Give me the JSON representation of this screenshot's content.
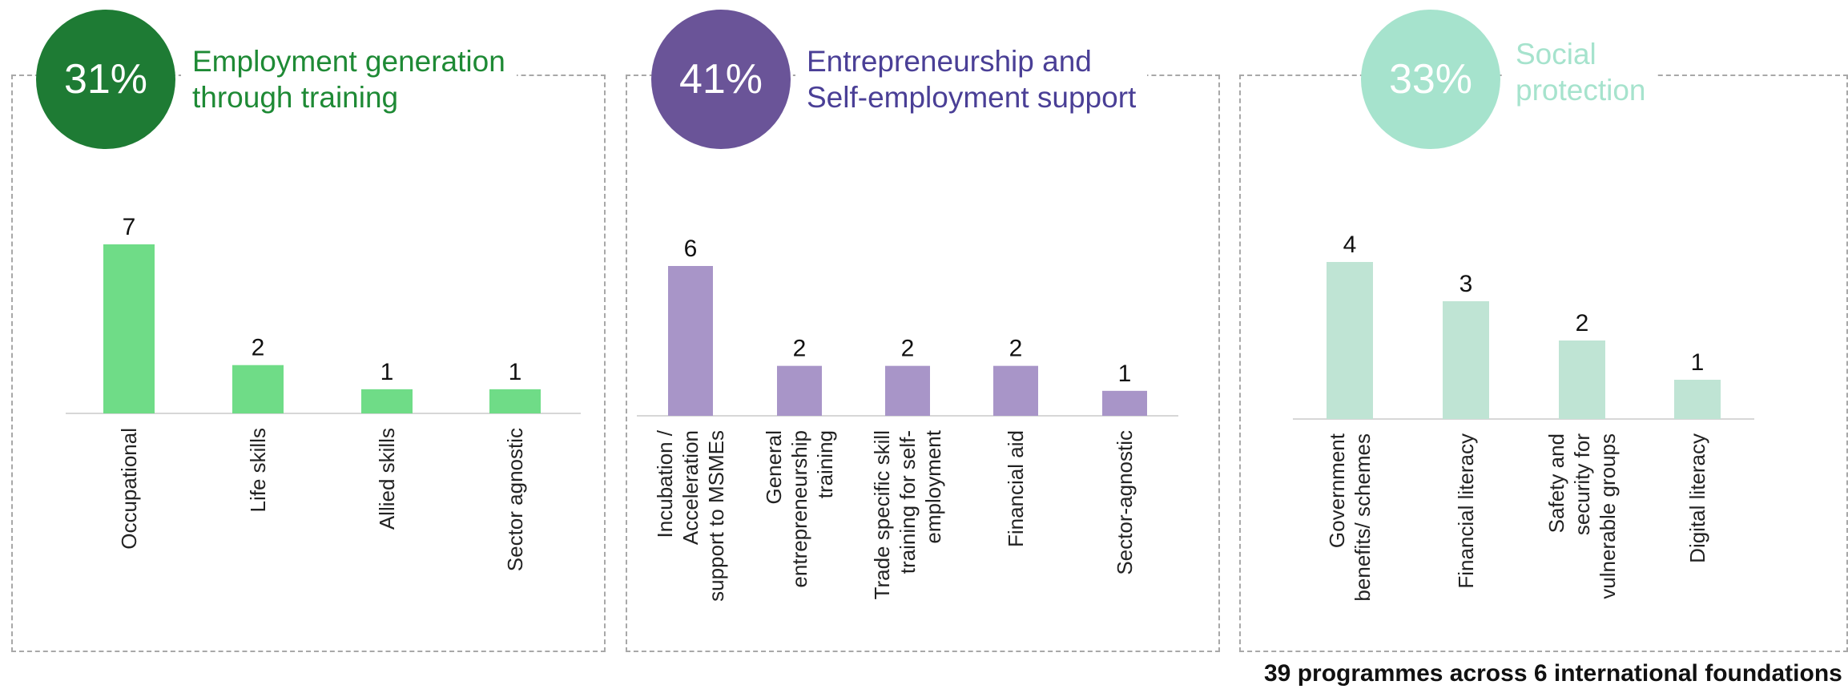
{
  "colors": {
    "employment_dark": "#1e7b34",
    "employment_bar": "#6fdc87",
    "employment_text": "#1e8a35",
    "entrepreneurship_dark": "#6a5498",
    "entrepreneurship_bar": "#a895c8",
    "entrepreneurship_text": "#4a3f96",
    "social_dark": "#a6e3cd",
    "social_bar": "#bfe4d4",
    "social_text": "#a6e3cd",
    "axis": "#d7d7d7"
  },
  "footer_note": "39 programmes across 6 international foundations",
  "chart_data": [
    {
      "type": "bar",
      "percent_label": "31%",
      "title_lines": [
        "Employment generation",
        "through training"
      ],
      "categories": [
        [
          "Occupational"
        ],
        [
          "Life skills"
        ],
        [
          "Allied skills"
        ],
        [
          "Sector agnostic"
        ]
      ],
      "values": [
        7,
        2,
        1,
        1
      ],
      "ylim": [
        0,
        7
      ]
    },
    {
      "type": "bar",
      "percent_label": "41%",
      "title_lines": [
        "Entrepreneurship and",
        "Self-employment support"
      ],
      "categories": [
        [
          "Incubation /",
          "Acceleration",
          "support to MSMEs"
        ],
        [
          "General",
          "entrepreneurship",
          "training"
        ],
        [
          "Trade specific skill",
          "training for self-",
          "employment"
        ],
        [
          "Financial aid"
        ],
        [
          "Sector-agnostic"
        ]
      ],
      "values": [
        6,
        2,
        2,
        2,
        1
      ],
      "ylim": [
        0,
        6
      ]
    },
    {
      "type": "bar",
      "percent_label": "33%",
      "title_lines": [
        "Social",
        "protection"
      ],
      "categories": [
        [
          "Government",
          "benefits/ schemes"
        ],
        [
          "Financial literacy"
        ],
        [
          "Safety and",
          "security for",
          "vulnerable groups"
        ],
        [
          "Digital literacy"
        ]
      ],
      "values": [
        4,
        3,
        2,
        1
      ],
      "ylim": [
        0,
        4
      ]
    }
  ]
}
